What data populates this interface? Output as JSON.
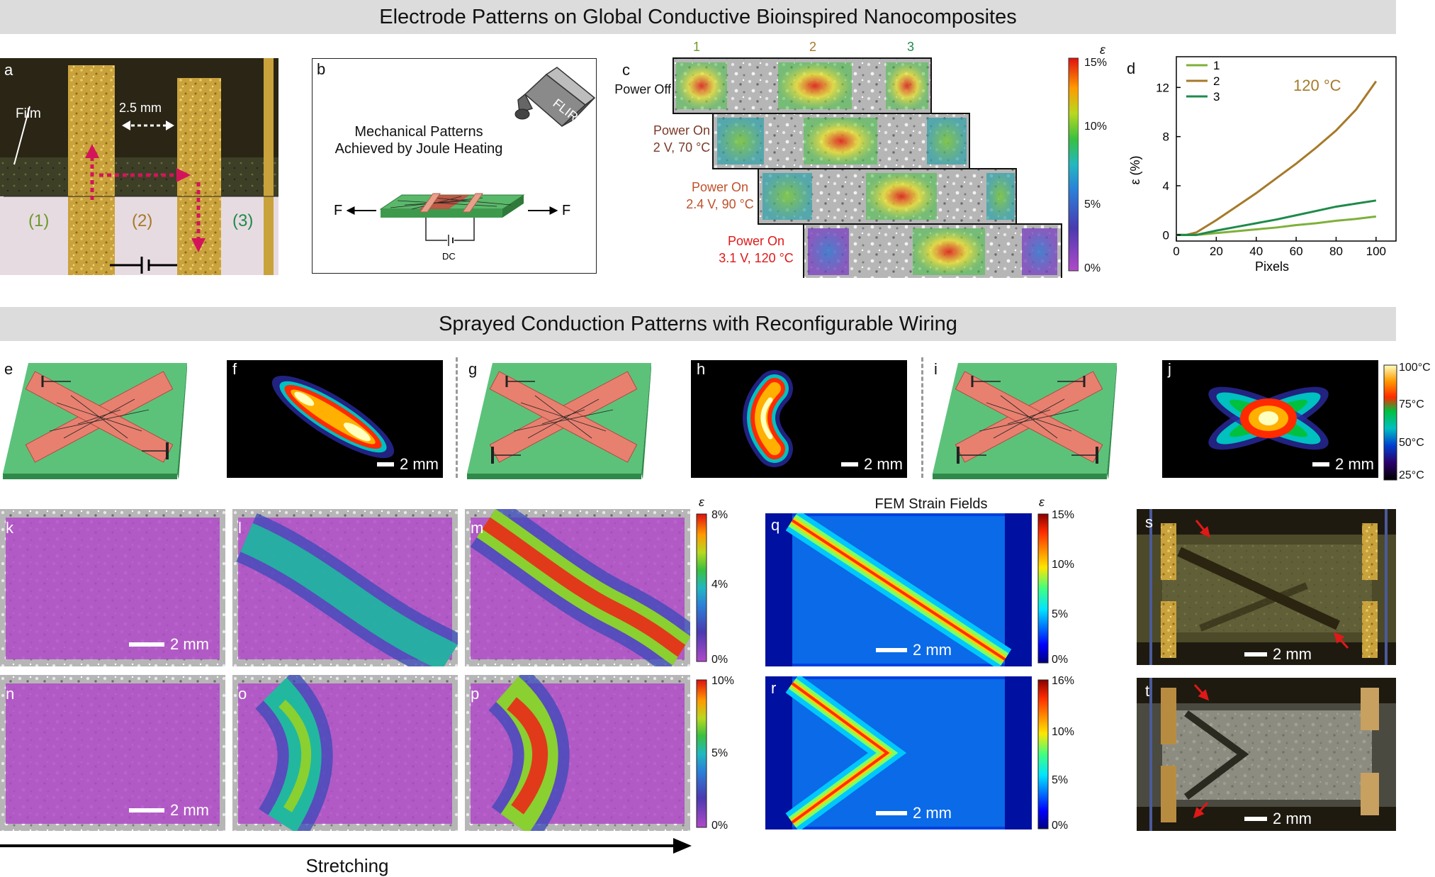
{
  "banners": {
    "top": "Electrode Patterns on Global Conductive Bioinspired Nanocomposites",
    "middle": "Sprayed Conduction Patterns with Reconfigurable Wiring"
  },
  "panel_a": {
    "label": "a",
    "film": "Film",
    "gap": "2.5 mm",
    "region1": "(1)",
    "region2": "(2)",
    "region3": "(3)"
  },
  "panel_b": {
    "label": "b",
    "title_line1": "Mechanical Patterns",
    "title_line2": "Achieved by Joule Heating",
    "camera": "FLIR",
    "force_left": "F",
    "force_right": "F",
    "dc": "DC"
  },
  "panel_c": {
    "label": "c",
    "columns": [
      "1",
      "2",
      "3"
    ],
    "rows": [
      {
        "line1": "Power Off",
        "line2": ""
      },
      {
        "line1": "Power On",
        "line2": "2 V, 70 °C"
      },
      {
        "line1": "Power On",
        "line2": "2.4 V, 90 °C"
      },
      {
        "line1": "Power On",
        "line2": "3.1 V, 120 °C"
      }
    ],
    "colorbar": {
      "symbol": "ε",
      "ticks": [
        "15%",
        "10%",
        "5%",
        "0%"
      ]
    }
  },
  "panel_d": {
    "label": "d",
    "annotation": "120 °C"
  },
  "chart_data": {
    "type": "line",
    "xlabel": "Pixels",
    "ylabel": "ε (%)",
    "xlim": [
      0,
      110
    ],
    "ylim": [
      -0.5,
      14.5
    ],
    "xticks": [
      0,
      20,
      40,
      60,
      80,
      100
    ],
    "yticks": [
      0,
      4,
      8,
      12
    ],
    "legend": "top-left",
    "series": [
      {
        "name": "1",
        "color": "#7fb03a",
        "x": [
          0,
          10,
          20,
          30,
          40,
          50,
          60,
          70,
          80,
          90,
          100
        ],
        "y": [
          0,
          0,
          0.15,
          0.3,
          0.45,
          0.6,
          0.8,
          0.95,
          1.15,
          1.3,
          1.5
        ]
      },
      {
        "name": "2",
        "color": "#a67a2a",
        "x": [
          0,
          5,
          10,
          20,
          30,
          40,
          50,
          60,
          70,
          80,
          90,
          100
        ],
        "y": [
          0,
          0,
          0.2,
          1.2,
          2.3,
          3.4,
          4.6,
          5.8,
          7.1,
          8.5,
          10.2,
          12.5
        ]
      },
      {
        "name": "3",
        "color": "#1f8a4a",
        "x": [
          0,
          10,
          20,
          30,
          40,
          50,
          60,
          70,
          80,
          90,
          100
        ],
        "y": [
          0,
          0,
          0.35,
          0.65,
          0.95,
          1.25,
          1.6,
          1.95,
          2.3,
          2.55,
          2.8
        ]
      }
    ]
  },
  "thermal": {
    "labels": {
      "e": "e",
      "f": "f",
      "g": "g",
      "h": "h",
      "i": "i",
      "j": "j"
    },
    "scale": "2 mm",
    "colorbar_ticks": [
      "100°C",
      "75°C",
      "50°C",
      "25°C"
    ]
  },
  "dic": {
    "labels": {
      "k": "k",
      "l": "l",
      "m": "m",
      "n": "n",
      "o": "o",
      "p": "p"
    },
    "scale": "2 mm",
    "colorbar_top": {
      "symbol": "ε",
      "ticks": [
        "8%",
        "4%",
        "0%"
      ]
    },
    "colorbar_bottom": {
      "ticks": [
        "10%",
        "5%",
        "0%"
      ]
    },
    "stretching": "Stretching"
  },
  "fem": {
    "label_q": "q",
    "label_r": "r",
    "title": "FEM Strain Fields",
    "scale": "2 mm",
    "colorbar_q": {
      "symbol": "ε",
      "ticks": [
        "15%",
        "10%",
        "5%",
        "0%"
      ]
    },
    "colorbar_r": {
      "ticks": [
        "16%",
        "10%",
        "5%",
        "0%"
      ]
    }
  },
  "photos": {
    "label_s": "s",
    "label_t": "t",
    "scale": "2 mm"
  }
}
